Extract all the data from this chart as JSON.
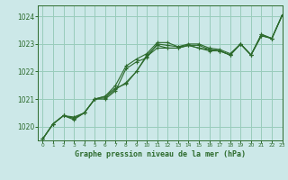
{
  "background_color": "#cce8e8",
  "plot_bg_color": "#cce8e8",
  "grid_color": "#99ccbb",
  "line_color": "#2d6b2d",
  "title": "Graphe pression niveau de la mer (hPa)",
  "xlim": [
    -0.5,
    23
  ],
  "ylim": [
    1019.5,
    1024.4
  ],
  "yticks": [
    1020,
    1021,
    1022,
    1023,
    1024
  ],
  "xticks": [
    0,
    1,
    2,
    3,
    4,
    5,
    6,
    7,
    8,
    9,
    10,
    11,
    12,
    13,
    14,
    15,
    16,
    17,
    18,
    19,
    20,
    21,
    22,
    23
  ],
  "series": [
    [
      1019.55,
      1020.1,
      1020.4,
      1020.3,
      1020.5,
      1021.0,
      1021.1,
      1021.5,
      1022.2,
      1022.45,
      1022.65,
      1023.05,
      1023.05,
      1022.9,
      1023.0,
      1023.0,
      1022.85,
      1022.8,
      1022.65,
      1023.0,
      1022.6,
      1023.35,
      1023.2,
      1024.05
    ],
    [
      1019.55,
      1020.1,
      1020.4,
      1020.3,
      1020.5,
      1021.0,
      1021.1,
      1021.4,
      1021.55,
      1022.0,
      1022.6,
      1022.95,
      1022.85,
      1022.85,
      1022.95,
      1022.85,
      1022.8,
      1022.75,
      1022.6,
      1023.0,
      1022.6,
      1023.35,
      1023.2,
      1024.05
    ],
    [
      1019.55,
      1020.1,
      1020.4,
      1020.35,
      1020.5,
      1021.0,
      1021.05,
      1021.35,
      1021.6,
      1022.0,
      1022.55,
      1022.85,
      1022.85,
      1022.85,
      1022.95,
      1022.85,
      1022.75,
      1022.75,
      1022.6,
      1023.0,
      1022.6,
      1023.3,
      1023.2,
      1024.05
    ],
    [
      1019.55,
      1020.1,
      1020.4,
      1020.25,
      1020.5,
      1021.0,
      1021.0,
      1021.3,
      1022.1,
      1022.35,
      1022.5,
      1023.0,
      1022.95,
      1022.9,
      1022.95,
      1022.95,
      1022.8,
      1022.75,
      1022.6,
      1023.0,
      1022.6,
      1023.3,
      1023.2,
      1024.05
    ]
  ]
}
